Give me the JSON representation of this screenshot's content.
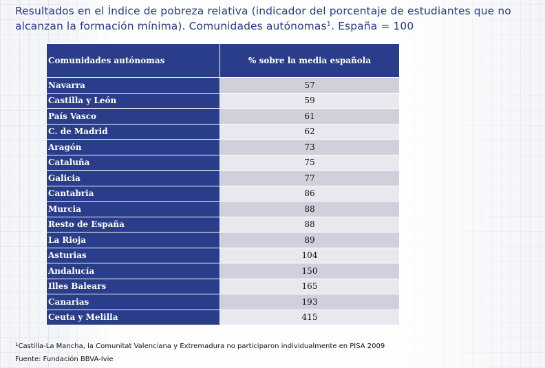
{
  "title": {
    "text": "Resultados en el Índice de pobreza relativa (indicador del porcentaje de estudiantes que no alcanzan la formación mínima). Comunidades autónomas",
    "sup": "1",
    "suffix": ". España = 100"
  },
  "table": {
    "headers": [
      "Comunidades autónomas",
      "% sobre la media española"
    ],
    "rows": [
      {
        "region": "Navarra",
        "value": "57"
      },
      {
        "region": "Castilla y León",
        "value": "59"
      },
      {
        "region": "País Vasco",
        "value": "61"
      },
      {
        "region": "C. de Madrid",
        "value": "62"
      },
      {
        "region": "Aragón",
        "value": "73"
      },
      {
        "region": "Cataluña",
        "value": "75"
      },
      {
        "region": "Galicia",
        "value": "77"
      },
      {
        "region": "Cantabria",
        "value": "86"
      },
      {
        "region": "Murcia",
        "value": "88"
      },
      {
        "region": "Resto de España",
        "value": "88"
      },
      {
        "region": "La Rioja",
        "value": "89"
      },
      {
        "region": "Asturias",
        "value": "104"
      },
      {
        "region": "Andalucía",
        "value": "150"
      },
      {
        "region": "Illes Balears",
        "value": "165"
      },
      {
        "region": "Canarias",
        "value": "193"
      },
      {
        "region": "Ceuta y Melilla",
        "value": "415"
      }
    ]
  },
  "footnote": {
    "sup": "1",
    "text": "Castilla-La Mancha, la Comunitat Valenciana y Extremadura no participaron individualmente en PISA 2009"
  },
  "source": "Fuente: Fundación BBVA-Ivie",
  "colors": {
    "header_bg": "#2a3d8a",
    "title_color": "#273b8a",
    "row_shade_a": "#cfd0dc",
    "row_shade_b": "#e8e9ee"
  }
}
